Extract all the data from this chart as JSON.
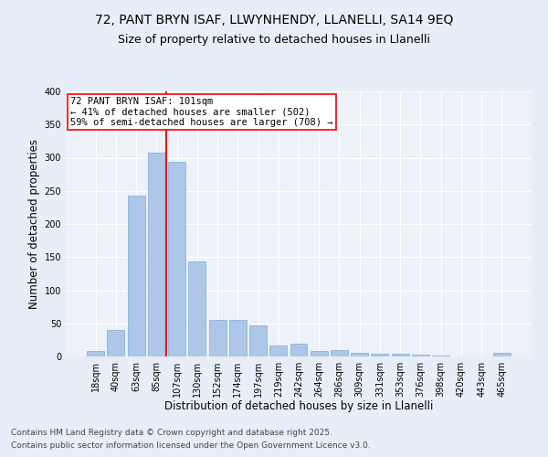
{
  "title_line1": "72, PANT BRYN ISAF, LLWYNHENDY, LLANELLI, SA14 9EQ",
  "title_line2": "Size of property relative to detached houses in Llanelli",
  "xlabel": "Distribution of detached houses by size in Llanelli",
  "ylabel": "Number of detached properties",
  "categories": [
    "18sqm",
    "40sqm",
    "63sqm",
    "85sqm",
    "107sqm",
    "130sqm",
    "152sqm",
    "174sqm",
    "197sqm",
    "219sqm",
    "242sqm",
    "264sqm",
    "286sqm",
    "309sqm",
    "331sqm",
    "353sqm",
    "376sqm",
    "398sqm",
    "420sqm",
    "443sqm",
    "465sqm"
  ],
  "values": [
    8,
    40,
    243,
    307,
    294,
    144,
    55,
    55,
    47,
    17,
    19,
    8,
    10,
    5,
    4,
    4,
    3,
    1,
    0,
    0,
    5
  ],
  "bar_color": "#aec6e8",
  "bar_edge_color": "#7aadd4",
  "vline_index": 3.5,
  "vline_color": "red",
  "annotation_text": "72 PANT BRYN ISAF: 101sqm\n← 41% of detached houses are smaller (502)\n59% of semi-detached houses are larger (708) →",
  "annotation_box_color": "white",
  "annotation_box_edge": "red",
  "ylim": [
    0,
    400
  ],
  "yticks": [
    0,
    50,
    100,
    150,
    200,
    250,
    300,
    350,
    400
  ],
  "bg_color": "#e8eef7",
  "plot_bg_color": "#edf2f9",
  "footer_line1": "Contains HM Land Registry data © Crown copyright and database right 2025.",
  "footer_line2": "Contains public sector information licensed under the Open Government Licence v3.0.",
  "title_fontsize": 10,
  "subtitle_fontsize": 9,
  "axis_label_fontsize": 8.5,
  "tick_fontsize": 7,
  "annotation_fontsize": 7.5,
  "footer_fontsize": 6.5
}
